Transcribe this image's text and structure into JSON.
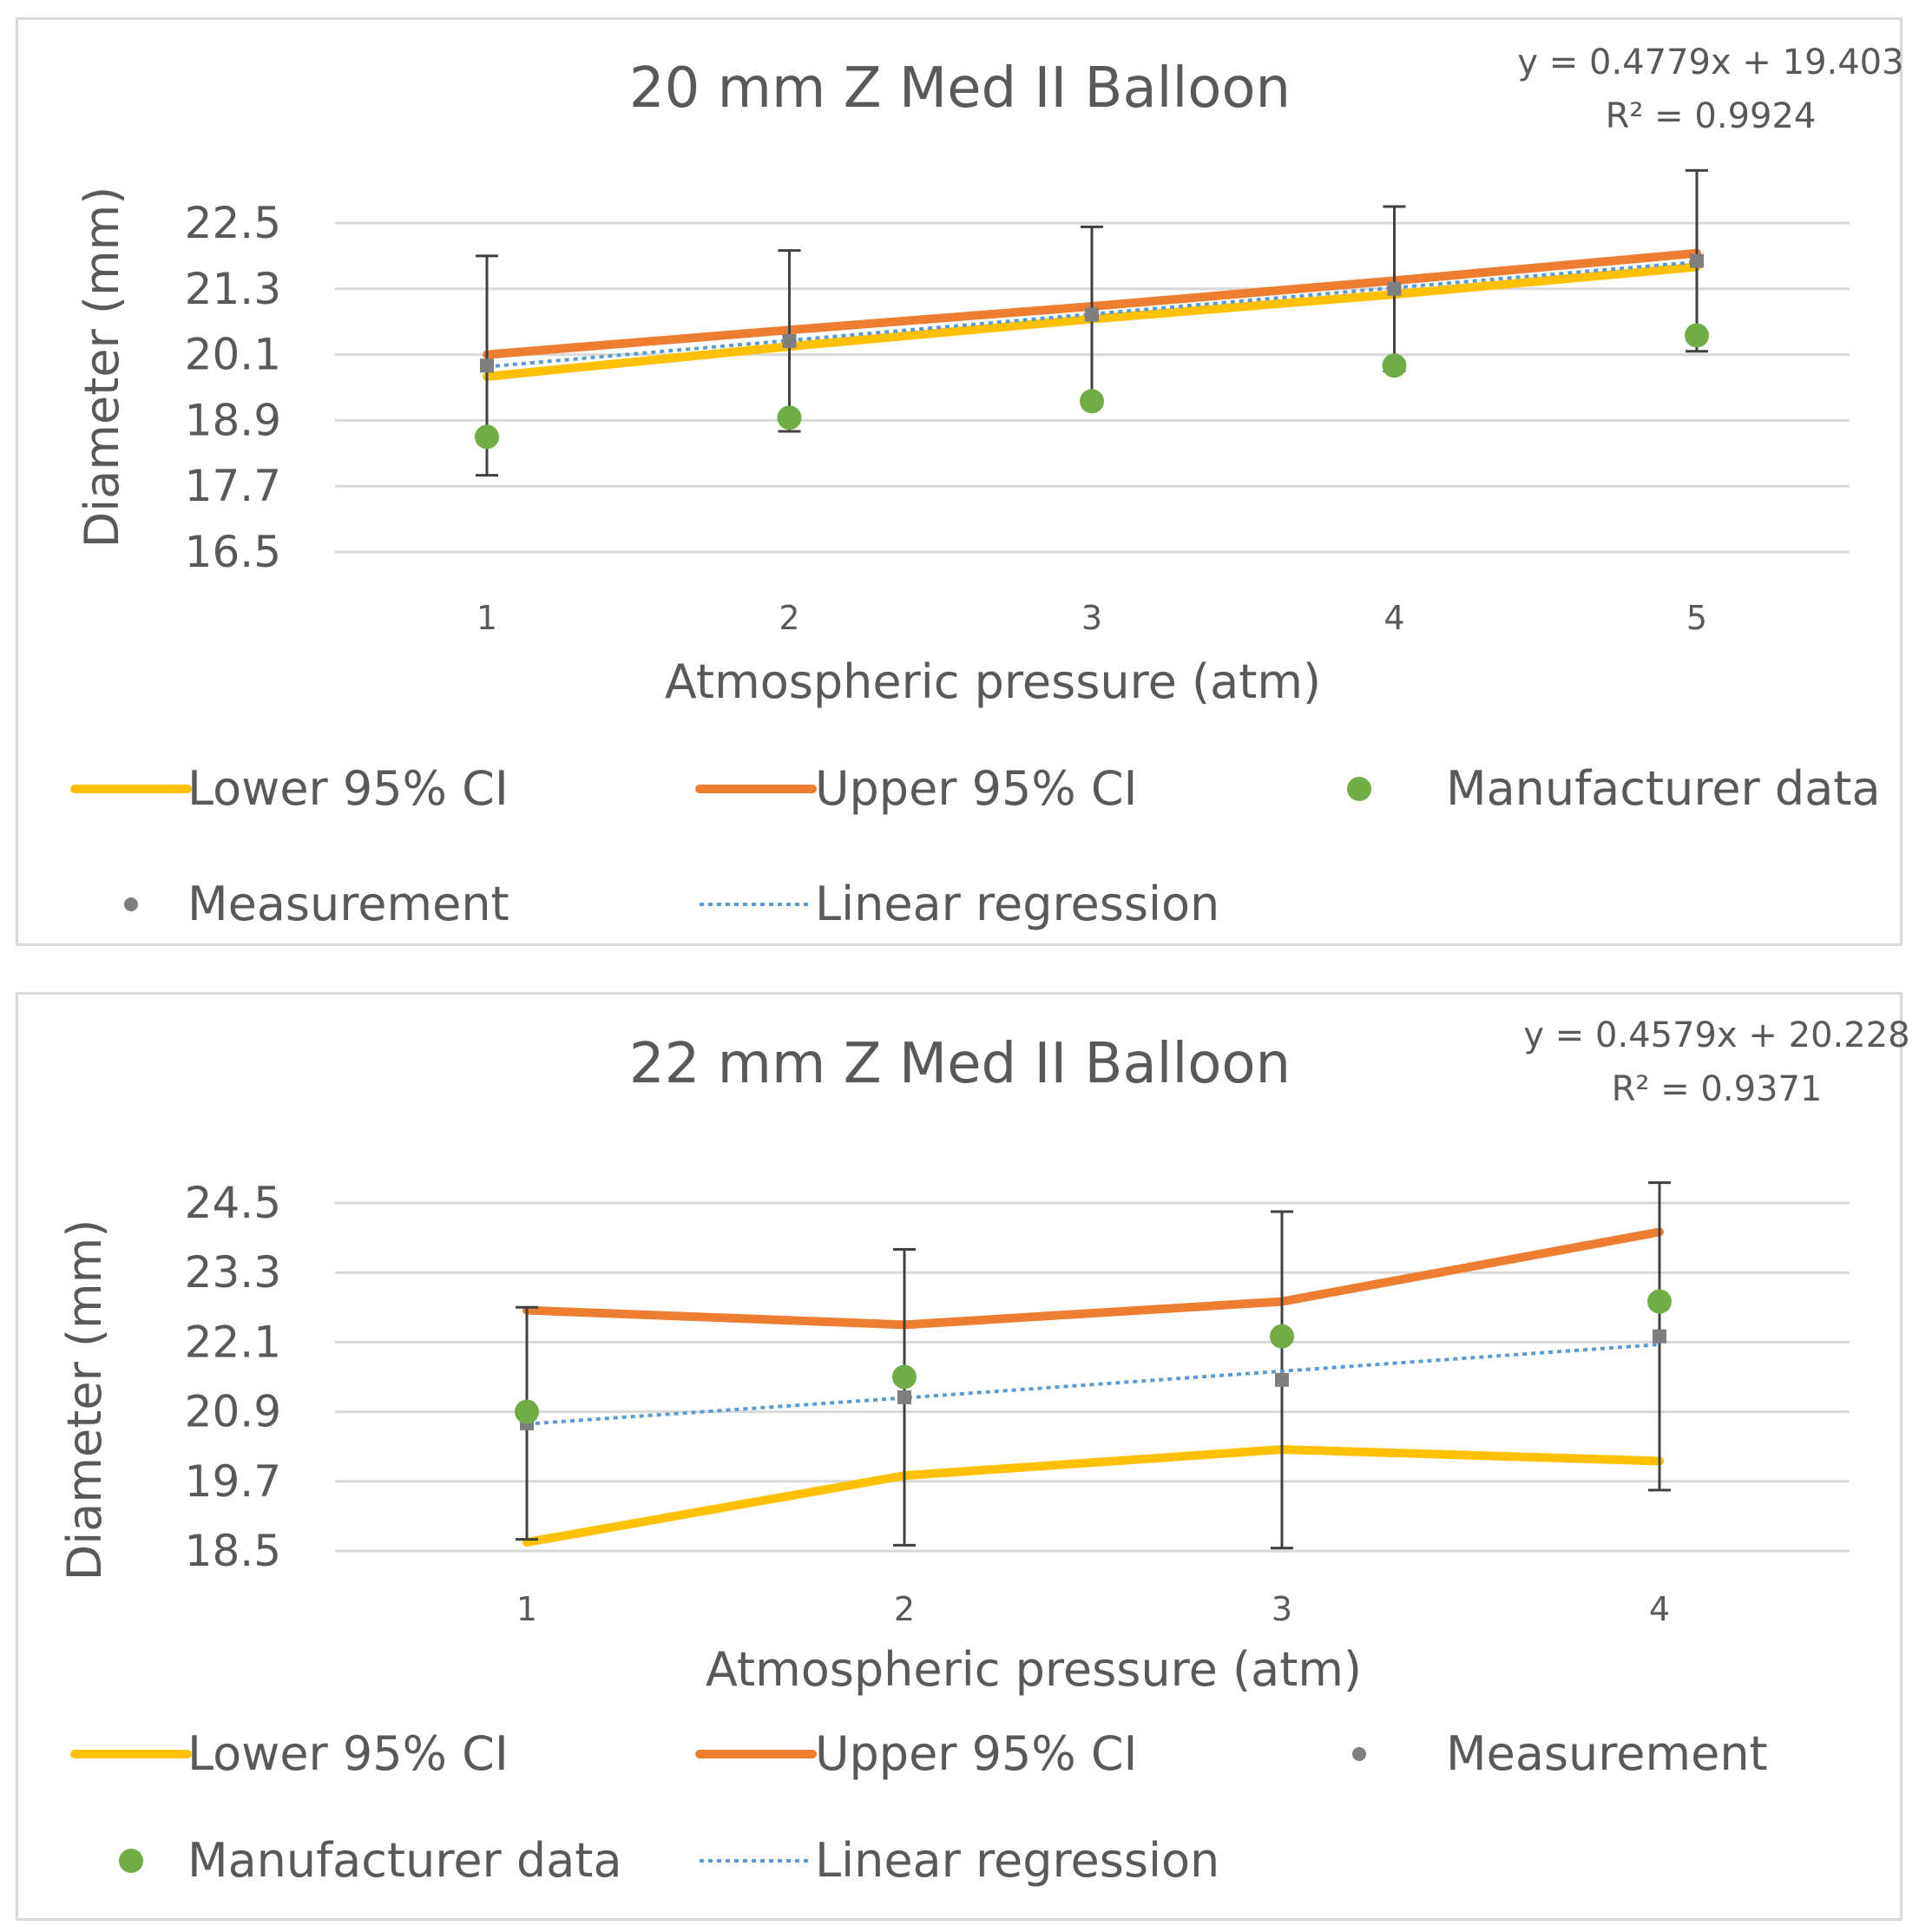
{
  "colors": {
    "lower": "#FFC000",
    "upper": "#ED7D31",
    "manufacturer": "#70AD47",
    "measurement": "#7F7F7F",
    "regression": "#5B9BD5",
    "grid": "#D9D9D9",
    "errorbar": "#404040"
  },
  "chart_data": [
    {
      "type": "line",
      "title": "20 mm Z Med II Balloon",
      "equation": "y = 0.4779x + 19.403",
      "r2": "R² = 0.9924",
      "xlabel": "Atmospheric pressure (atm)",
      "ylabel": "Diameter (mm)",
      "ylim": [
        16.5,
        22.5
      ],
      "yticks": [
        "16.5",
        "17.7",
        "18.9",
        "20.1",
        "21.3",
        "22.5"
      ],
      "categories": [
        "1",
        "2",
        "3",
        "4",
        "5"
      ],
      "series": [
        {
          "name": "Lower 95% CI",
          "key": "lower",
          "values": [
            19.7,
            20.25,
            20.75,
            21.2,
            21.7
          ]
        },
        {
          "name": "Upper 95% CI",
          "key": "upper",
          "values": [
            20.1,
            20.55,
            20.98,
            21.45,
            21.95
          ]
        },
        {
          "name": "Manufacturer data",
          "key": "manufacturer",
          "values": [
            18.6,
            18.95,
            19.25,
            19.9,
            20.45
          ]
        },
        {
          "name": "Measurement",
          "key": "measurement",
          "values": [
            19.9,
            20.35,
            20.83,
            21.3,
            21.81
          ],
          "error": [
            2.0,
            1.65,
            1.6,
            1.5,
            1.65
          ]
        },
        {
          "name": "Linear regression",
          "key": "regression",
          "values": [
            19.88,
            20.36,
            20.84,
            21.32,
            21.79
          ]
        }
      ],
      "legend": [
        {
          "label": "Lower 95% CI",
          "key": "lower",
          "kind": "line"
        },
        {
          "label": "Upper 95% CI",
          "key": "upper",
          "kind": "line"
        },
        {
          "label": "Manufacturer data",
          "key": "manufacturer",
          "kind": "dot"
        },
        {
          "label": "Measurement",
          "key": "measurement",
          "kind": "smalldot"
        },
        {
          "label": "Linear regression",
          "key": "regression",
          "kind": "dotted"
        }
      ]
    },
    {
      "type": "line",
      "title": "22 mm Z Med II Balloon",
      "equation": "y = 0.4579x + 20.228",
      "r2": "R² = 0.9371",
      "xlabel": "Atmospheric pressure (atm)",
      "ylabel": "Diameter (mm)",
      "ylim": [
        18.5,
        24.5
      ],
      "yticks": [
        "18.5",
        "19.7",
        "20.9",
        "22.1",
        "23.3",
        "24.5"
      ],
      "categories": [
        "1",
        "2",
        "3",
        "4"
      ],
      "series": [
        {
          "name": "Lower 95% CI",
          "key": "lower",
          "values": [
            18.65,
            19.8,
            20.25,
            20.05
          ]
        },
        {
          "name": "Upper 95% CI",
          "key": "upper",
          "values": [
            22.65,
            22.4,
            22.8,
            24.0
          ]
        },
        {
          "name": "Manufacturer data",
          "key": "manufacturer",
          "values": [
            20.9,
            21.5,
            22.2,
            22.8
          ]
        },
        {
          "name": "Measurement",
          "key": "measurement",
          "values": [
            20.7,
            21.15,
            21.45,
            22.2
          ],
          "error": [
            2.0,
            2.55,
            2.9,
            2.65
          ]
        },
        {
          "name": "Linear regression",
          "key": "regression",
          "values": [
            20.69,
            21.14,
            21.6,
            22.06
          ]
        }
      ],
      "legend": [
        {
          "label": "Lower 95% CI",
          "key": "lower",
          "kind": "line"
        },
        {
          "label": "Upper 95% CI",
          "key": "upper",
          "kind": "line"
        },
        {
          "label": "Measurement",
          "key": "measurement",
          "kind": "smalldot"
        },
        {
          "label": "Manufacturer data",
          "key": "manufacturer",
          "kind": "dot"
        },
        {
          "label": "Linear regression",
          "key": "regression",
          "kind": "dotted"
        }
      ]
    }
  ]
}
